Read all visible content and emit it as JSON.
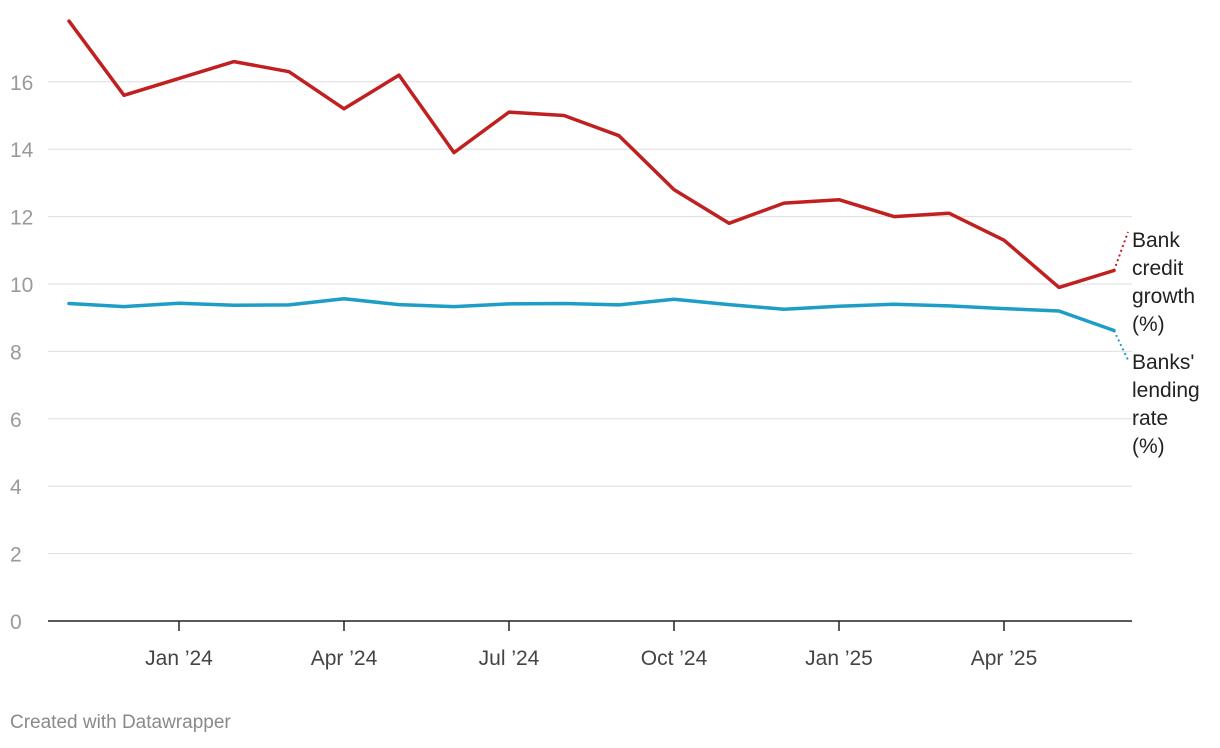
{
  "chart_data": {
    "type": "line",
    "title": "",
    "xlabel": "",
    "ylabel": "",
    "ylim": [
      0,
      16
    ],
    "yticks": [
      0,
      2,
      4,
      6,
      8,
      10,
      12,
      14,
      16
    ],
    "x": [
      "Nov 2023",
      "Dec 2023",
      "Jan 2024",
      "Feb 2024",
      "Mar 2024",
      "Apr 2024",
      "May 2024",
      "Jun 2024",
      "Jul 2024",
      "Aug 2024",
      "Sep 2024",
      "Oct 2024",
      "Nov 2024",
      "Dec 2024",
      "Jan 2025",
      "Feb 2025",
      "Mar 2025",
      "Apr 2025",
      "May 2025",
      "Jun 2025"
    ],
    "xticks": [
      {
        "index": 2,
        "label": "Jan ’24"
      },
      {
        "index": 5,
        "label": "Apr ’24"
      },
      {
        "index": 8,
        "label": "Jul ’24"
      },
      {
        "index": 11,
        "label": "Oct ’24"
      },
      {
        "index": 14,
        "label": "Jan ’25"
      },
      {
        "index": 17,
        "label": "Apr ’25"
      }
    ],
    "series": [
      {
        "name": "Bank credit growth (%)",
        "label_lines": [
          "Bank",
          "credit",
          "growth",
          "(%)"
        ],
        "color": "#c0201f",
        "values": [
          17.8,
          15.6,
          16.1,
          16.6,
          16.3,
          15.2,
          16.2,
          13.9,
          15.1,
          15.0,
          14.4,
          12.8,
          11.8,
          12.4,
          12.5,
          12.0,
          12.1,
          11.3,
          9.9,
          10.4
        ]
      },
      {
        "name": "Banks' lending rate (%)",
        "label_lines": [
          "Banks'",
          "lending",
          "rate",
          "(%)"
        ],
        "color": "#1e9ec7",
        "values": [
          9.42,
          9.33,
          9.43,
          9.37,
          9.38,
          9.56,
          9.39,
          9.33,
          9.41,
          9.42,
          9.38,
          9.55,
          9.39,
          9.25,
          9.34,
          9.4,
          9.35,
          9.27,
          9.2,
          8.62
        ]
      }
    ]
  },
  "footer": {
    "credit": "Created with Datawrapper"
  }
}
